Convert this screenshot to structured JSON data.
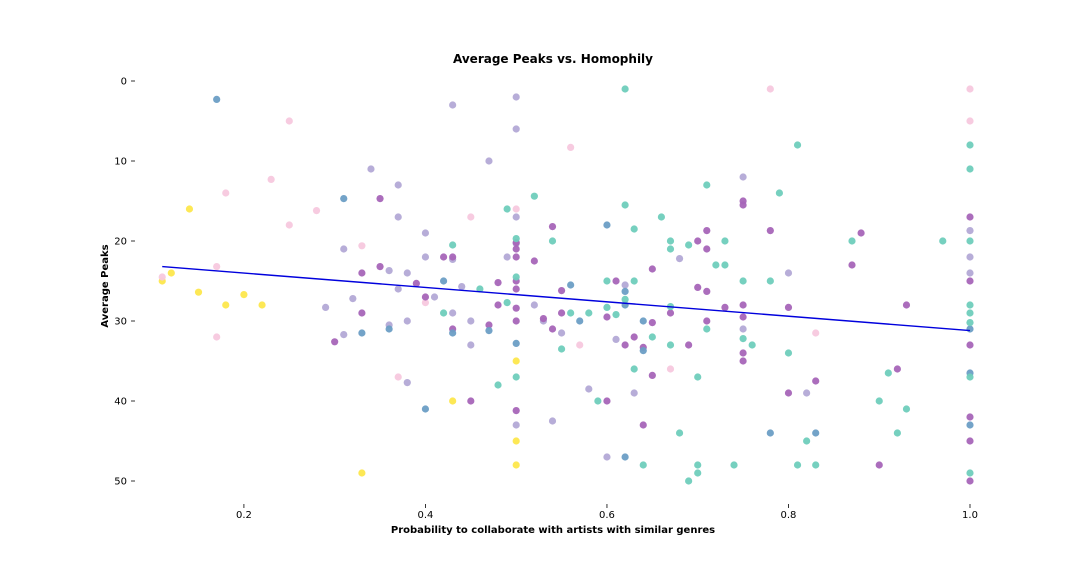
{
  "chart_data": {
    "type": "scatter",
    "title": "Average Peaks vs. Homophily",
    "xlabel": "Probability to collaborate with artists with similar genres",
    "ylabel": "Average Peaks",
    "xlim": [
      0.08,
      1.0
    ],
    "ylim": [
      -1,
      52
    ],
    "y_inverted": true,
    "x_ticks": [
      0.2,
      0.4,
      0.6,
      0.8,
      1.0
    ],
    "x_tick_labels": [
      "0.2",
      "0.4",
      "0.6",
      "0.8",
      "1.0"
    ],
    "y_ticks": [
      0,
      10,
      20,
      30,
      40,
      50
    ],
    "y_tick_labels": [
      "0",
      "10",
      "20",
      "30",
      "40",
      "50"
    ],
    "grid": false,
    "colors": {
      "yellow": "#fde74c",
      "pink": "#f7c8de",
      "lavender": "#b3a9d6",
      "purple": "#a665b8",
      "steel": "#6b9ec5",
      "teal": "#6fcebc",
      "trend": "#0000dd"
    },
    "trendline": {
      "x": [
        0.11,
        1.0
      ],
      "y": [
        23.2,
        31.2
      ]
    },
    "series": [
      {
        "name": "yellow",
        "color": "#fde74c",
        "points": [
          [
            0.11,
            25
          ],
          [
            0.12,
            24
          ],
          [
            0.14,
            16
          ],
          [
            0.15,
            26.4
          ],
          [
            0.18,
            28
          ],
          [
            0.2,
            26.7
          ],
          [
            0.22,
            28
          ],
          [
            0.33,
            49
          ],
          [
            0.43,
            40
          ],
          [
            0.5,
            35
          ],
          [
            0.5,
            45
          ],
          [
            0.5,
            48
          ]
        ]
      },
      {
        "name": "pink",
        "color": "#f7c8de",
        "points": [
          [
            0.11,
            24.5
          ],
          [
            0.17,
            23.2
          ],
          [
            0.17,
            32
          ],
          [
            0.18,
            14
          ],
          [
            0.23,
            12.3
          ],
          [
            0.25,
            5
          ],
          [
            0.25,
            18
          ],
          [
            0.28,
            16.2
          ],
          [
            0.33,
            20.6
          ],
          [
            0.37,
            37
          ],
          [
            0.4,
            27.7
          ],
          [
            0.45,
            17
          ],
          [
            0.5,
            16
          ],
          [
            0.56,
            8.3
          ],
          [
            0.57,
            33
          ],
          [
            0.67,
            36
          ],
          [
            0.78,
            1
          ],
          [
            0.83,
            31.5
          ],
          [
            1.0,
            1
          ],
          [
            1.0,
            5
          ]
        ]
      },
      {
        "name": "lavender",
        "color": "#b3a9d6",
        "points": [
          [
            0.29,
            28.3
          ],
          [
            0.31,
            21
          ],
          [
            0.31,
            31.7
          ],
          [
            0.32,
            27.2
          ],
          [
            0.34,
            11
          ],
          [
            0.36,
            30.5
          ],
          [
            0.36,
            23.7
          ],
          [
            0.37,
            17
          ],
          [
            0.37,
            26
          ],
          [
            0.37,
            13
          ],
          [
            0.38,
            30
          ],
          [
            0.38,
            37.7
          ],
          [
            0.38,
            24
          ],
          [
            0.4,
            19
          ],
          [
            0.4,
            22
          ],
          [
            0.41,
            27
          ],
          [
            0.43,
            3
          ],
          [
            0.43,
            29
          ],
          [
            0.43,
            22.3
          ],
          [
            0.44,
            25.7
          ],
          [
            0.45,
            30
          ],
          [
            0.45,
            33
          ],
          [
            0.47,
            10
          ],
          [
            0.49,
            22
          ],
          [
            0.5,
            2
          ],
          [
            0.5,
            6
          ],
          [
            0.5,
            17
          ],
          [
            0.5,
            20.3
          ],
          [
            0.5,
            43
          ],
          [
            0.52,
            28
          ],
          [
            0.53,
            30
          ],
          [
            0.54,
            42.5
          ],
          [
            0.55,
            31.5
          ],
          [
            0.58,
            38.5
          ],
          [
            0.6,
            47
          ],
          [
            0.61,
            32.3
          ],
          [
            0.62,
            25.5
          ],
          [
            0.63,
            39
          ],
          [
            0.68,
            22.2
          ],
          [
            0.75,
            12
          ],
          [
            0.75,
            31
          ],
          [
            0.8,
            24
          ],
          [
            0.82,
            39
          ],
          [
            1.0,
            18.7
          ],
          [
            1.0,
            22
          ],
          [
            1.0,
            24
          ]
        ]
      },
      {
        "name": "purple",
        "color": "#a665b8",
        "points": [
          [
            0.3,
            32.6
          ],
          [
            0.33,
            24
          ],
          [
            0.33,
            29
          ],
          [
            0.35,
            23.2
          ],
          [
            0.35,
            14.7
          ],
          [
            0.39,
            25.3
          ],
          [
            0.4,
            27
          ],
          [
            0.42,
            22
          ],
          [
            0.43,
            31
          ],
          [
            0.43,
            22
          ],
          [
            0.45,
            40
          ],
          [
            0.47,
            30.5
          ],
          [
            0.48,
            25.2
          ],
          [
            0.48,
            28
          ],
          [
            0.5,
            20.2
          ],
          [
            0.5,
            21
          ],
          [
            0.5,
            22
          ],
          [
            0.5,
            25
          ],
          [
            0.5,
            26
          ],
          [
            0.5,
            28.4
          ],
          [
            0.5,
            30
          ],
          [
            0.5,
            41.2
          ],
          [
            0.52,
            22.5
          ],
          [
            0.53,
            29.7
          ],
          [
            0.54,
            18.2
          ],
          [
            0.54,
            31
          ],
          [
            0.55,
            29
          ],
          [
            0.55,
            26.2
          ],
          [
            0.6,
            40
          ],
          [
            0.6,
            29.5
          ],
          [
            0.61,
            25
          ],
          [
            0.62,
            33
          ],
          [
            0.63,
            32
          ],
          [
            0.64,
            33.3
          ],
          [
            0.64,
            43
          ],
          [
            0.65,
            30.2
          ],
          [
            0.65,
            23.5
          ],
          [
            0.65,
            36.8
          ],
          [
            0.67,
            29
          ],
          [
            0.69,
            33
          ],
          [
            0.7,
            20
          ],
          [
            0.7,
            25.8
          ],
          [
            0.71,
            26.3
          ],
          [
            0.71,
            18.7
          ],
          [
            0.71,
            30
          ],
          [
            0.71,
            21
          ],
          [
            0.73,
            28.3
          ],
          [
            0.75,
            15
          ],
          [
            0.75,
            15.5
          ],
          [
            0.75,
            28
          ],
          [
            0.75,
            29.5
          ],
          [
            0.75,
            34
          ],
          [
            0.75,
            35
          ],
          [
            0.78,
            18.7
          ],
          [
            0.8,
            28.3
          ],
          [
            0.8,
            39
          ],
          [
            0.83,
            37.5
          ],
          [
            0.87,
            23
          ],
          [
            0.88,
            19
          ],
          [
            0.9,
            48
          ],
          [
            0.92,
            36
          ],
          [
            0.93,
            28
          ],
          [
            1.0,
            17
          ],
          [
            1.0,
            25
          ],
          [
            1.0,
            33
          ],
          [
            1.0,
            42
          ],
          [
            1.0,
            45
          ],
          [
            1.0,
            50
          ]
        ]
      },
      {
        "name": "steel",
        "color": "#6b9ec5",
        "points": [
          [
            0.17,
            2.3
          ],
          [
            0.31,
            14.7
          ],
          [
            0.33,
            31.5
          ],
          [
            0.36,
            31
          ],
          [
            0.4,
            41
          ],
          [
            0.42,
            25
          ],
          [
            0.43,
            31.5
          ],
          [
            0.47,
            31.2
          ],
          [
            0.5,
            32.8
          ],
          [
            0.56,
            25.5
          ],
          [
            0.57,
            30
          ],
          [
            0.6,
            18
          ],
          [
            0.62,
            28
          ],
          [
            0.62,
            26.3
          ],
          [
            0.62,
            47
          ],
          [
            0.64,
            30
          ],
          [
            0.64,
            33.7
          ],
          [
            0.78,
            44
          ],
          [
            0.83,
            44
          ],
          [
            1.0,
            31
          ],
          [
            1.0,
            36.5
          ],
          [
            1.0,
            43
          ]
        ]
      },
      {
        "name": "teal",
        "color": "#6fcebc",
        "points": [
          [
            0.42,
            29
          ],
          [
            0.43,
            20.5
          ],
          [
            0.46,
            26
          ],
          [
            0.48,
            38
          ],
          [
            0.49,
            16
          ],
          [
            0.49,
            27.7
          ],
          [
            0.5,
            19.7
          ],
          [
            0.5,
            24.5
          ],
          [
            0.5,
            37
          ],
          [
            0.52,
            14.4
          ],
          [
            0.54,
            20
          ],
          [
            0.55,
            33.5
          ],
          [
            0.56,
            29
          ],
          [
            0.58,
            29
          ],
          [
            0.59,
            40
          ],
          [
            0.6,
            28.3
          ],
          [
            0.6,
            25
          ],
          [
            0.61,
            29.2
          ],
          [
            0.62,
            27.3
          ],
          [
            0.62,
            1
          ],
          [
            0.62,
            15.5
          ],
          [
            0.63,
            18.5
          ],
          [
            0.63,
            25
          ],
          [
            0.63,
            36
          ],
          [
            0.64,
            48
          ],
          [
            0.65,
            32
          ],
          [
            0.66,
            17
          ],
          [
            0.67,
            20
          ],
          [
            0.67,
            21
          ],
          [
            0.67,
            28.2
          ],
          [
            0.67,
            33
          ],
          [
            0.68,
            44
          ],
          [
            0.69,
            20.5
          ],
          [
            0.69,
            50
          ],
          [
            0.7,
            37
          ],
          [
            0.7,
            48
          ],
          [
            0.7,
            49
          ],
          [
            0.71,
            13
          ],
          [
            0.71,
            31
          ],
          [
            0.72,
            23
          ],
          [
            0.73,
            23
          ],
          [
            0.73,
            20
          ],
          [
            0.74,
            48
          ],
          [
            0.75,
            25
          ],
          [
            0.75,
            32.2
          ],
          [
            0.76,
            33
          ],
          [
            0.78,
            25
          ],
          [
            0.79,
            14
          ],
          [
            0.8,
            34
          ],
          [
            0.81,
            48
          ],
          [
            0.81,
            8
          ],
          [
            0.82,
            45
          ],
          [
            0.83,
            48
          ],
          [
            0.87,
            20
          ],
          [
            0.9,
            40
          ],
          [
            0.91,
            36.5
          ],
          [
            0.92,
            44
          ],
          [
            0.93,
            41
          ],
          [
            0.97,
            20
          ],
          [
            1.0,
            8
          ],
          [
            1.0,
            11
          ],
          [
            1.0,
            20
          ],
          [
            1.0,
            28
          ],
          [
            1.0,
            29
          ],
          [
            1.0,
            30.2
          ],
          [
            1.0,
            37
          ],
          [
            1.0,
            49
          ]
        ]
      }
    ]
  }
}
